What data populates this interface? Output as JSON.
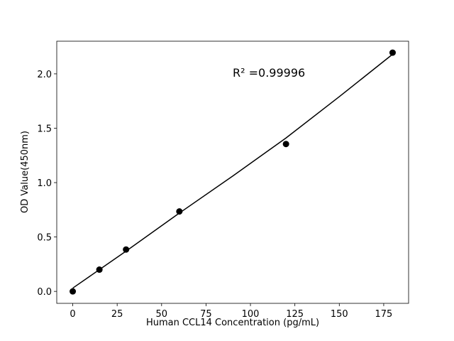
{
  "chart_data": {
    "type": "scatter",
    "x_label": "Human CCL14 Concentration (pg/mL)",
    "y_label": "OD Value(450nm)",
    "annotation": "R² =0.99996",
    "points": {
      "color": "#000000",
      "x": [
        0,
        15,
        30,
        60,
        120,
        180
      ],
      "values": [
        0.0,
        0.2,
        0.385,
        0.735,
        1.355,
        2.195
      ]
    },
    "fit": {
      "color": "#000000",
      "x": [
        0,
        30,
        60,
        90,
        120,
        150,
        180
      ],
      "values": [
        0.03,
        0.37,
        0.72,
        1.06,
        1.41,
        1.79,
        2.18
      ]
    },
    "xlim": [
      -9,
      189
    ],
    "ylim": [
      -0.11,
      2.3
    ],
    "xticks": [
      0,
      25,
      50,
      75,
      100,
      125,
      150,
      175
    ],
    "yticks": [
      {
        "value": 0,
        "label": "0.0"
      },
      0.5,
      {
        "value": 1,
        "label": "1.0"
      },
      1.5,
      {
        "value": 2,
        "label": "2.0"
      }
    ]
  }
}
